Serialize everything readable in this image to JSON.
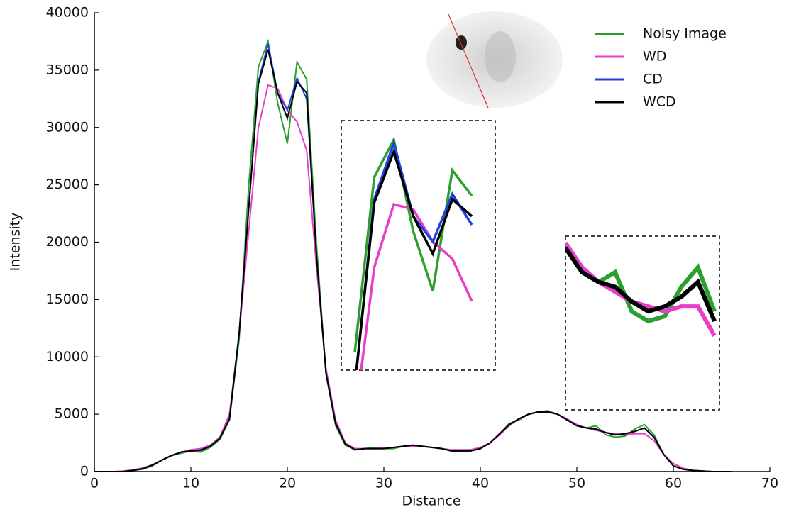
{
  "chart_data": {
    "type": "line",
    "x_label": "Distance",
    "y_label": "Intensity",
    "x": [
      0,
      1,
      2,
      3,
      4,
      5,
      6,
      7,
      8,
      9,
      10,
      11,
      12,
      13,
      14,
      15,
      16,
      17,
      18,
      19,
      20,
      21,
      22,
      23,
      24,
      25,
      26,
      27,
      28,
      29,
      30,
      31,
      32,
      33,
      34,
      35,
      36,
      37,
      38,
      39,
      40,
      41,
      42,
      43,
      44,
      45,
      46,
      47,
      48,
      49,
      50,
      51,
      52,
      53,
      54,
      55,
      56,
      57,
      58,
      59,
      60,
      61,
      62,
      63,
      64,
      65,
      66
    ],
    "series": [
      {
        "name": "Noisy Image",
        "color": "#2ca02c",
        "values": [
          0,
          0,
          0,
          0,
          100,
          200,
          500,
          1000,
          1400,
          1600,
          1800,
          1700,
          2100,
          2800,
          4500,
          11500,
          25000,
          35300,
          37500,
          32100,
          28600,
          35700,
          34200,
          20000,
          8500,
          4000,
          2300,
          1900,
          2000,
          2100,
          2000,
          2000,
          2200,
          2300,
          2200,
          2100,
          2000,
          1800,
          1800,
          1800,
          2000,
          2500,
          3300,
          4200,
          4500,
          5000,
          5200,
          5300,
          5000,
          4500,
          4000,
          3800,
          4000,
          3200,
          3000,
          3100,
          3700,
          4100,
          3200,
          1500,
          500,
          200,
          100,
          50,
          0,
          0,
          0
        ]
      },
      {
        "name": "WD",
        "color": "#e83ec8",
        "values": [
          0,
          0,
          0,
          50,
          150,
          300,
          600,
          1000,
          1400,
          1700,
          1900,
          2000,
          2300,
          3000,
          5000,
          12000,
          21000,
          30000,
          33700,
          33400,
          31500,
          30500,
          28000,
          18000,
          9000,
          4500,
          2500,
          2000,
          2000,
          2000,
          2100,
          2100,
          2200,
          2200,
          2200,
          2100,
          2000,
          1900,
          1900,
          1900,
          2100,
          2500,
          3200,
          4000,
          4600,
          5000,
          5200,
          5200,
          5000,
          4600,
          4100,
          3800,
          3600,
          3400,
          3300,
          3200,
          3300,
          3300,
          2700,
          1500,
          700,
          300,
          100,
          50,
          0,
          0,
          0
        ]
      },
      {
        "name": "CD",
        "color": "#2040e0",
        "values": [
          0,
          0,
          0,
          0,
          100,
          250,
          550,
          1000,
          1400,
          1700,
          1800,
          1900,
          2200,
          2900,
          4600,
          12000,
          23000,
          34000,
          37300,
          33000,
          31500,
          34300,
          32500,
          19000,
          8700,
          4200,
          2400,
          1900,
          2000,
          2000,
          2000,
          2100,
          2200,
          2300,
          2200,
          2100,
          2000,
          1800,
          1800,
          1800,
          2000,
          2500,
          3300,
          4100,
          4600,
          5000,
          5200,
          5200,
          5000,
          4500,
          4000,
          3800,
          3700,
          3400,
          3200,
          3300,
          3500,
          3800,
          3000,
          1500,
          500,
          200,
          100,
          50,
          0,
          0,
          0
        ]
      },
      {
        "name": "WCD",
        "color": "#000000",
        "values": [
          0,
          0,
          0,
          0,
          100,
          250,
          550,
          1000,
          1400,
          1700,
          1800,
          1850,
          2200,
          2900,
          4600,
          12000,
          23000,
          33800,
          36800,
          33000,
          30800,
          34000,
          33000,
          19000,
          8600,
          4200,
          2400,
          1900,
          2000,
          2000,
          2000,
          2100,
          2200,
          2300,
          2200,
          2100,
          2000,
          1800,
          1800,
          1800,
          2000,
          2500,
          3300,
          4100,
          4600,
          5000,
          5200,
          5200,
          5000,
          4500,
          4000,
          3800,
          3700,
          3400,
          3200,
          3300,
          3500,
          3800,
          3000,
          1500,
          500,
          200,
          100,
          50,
          0,
          0,
          0
        ]
      }
    ],
    "xlim": [
      0,
      70
    ],
    "xticks": [
      0,
      10,
      20,
      30,
      40,
      50,
      60,
      70
    ],
    "ylim": [
      0,
      40000
    ],
    "yticks": [
      0,
      5000,
      10000,
      15000,
      20000,
      25000,
      30000,
      35000,
      40000
    ],
    "legend": "upper right",
    "grid": false
  }
}
